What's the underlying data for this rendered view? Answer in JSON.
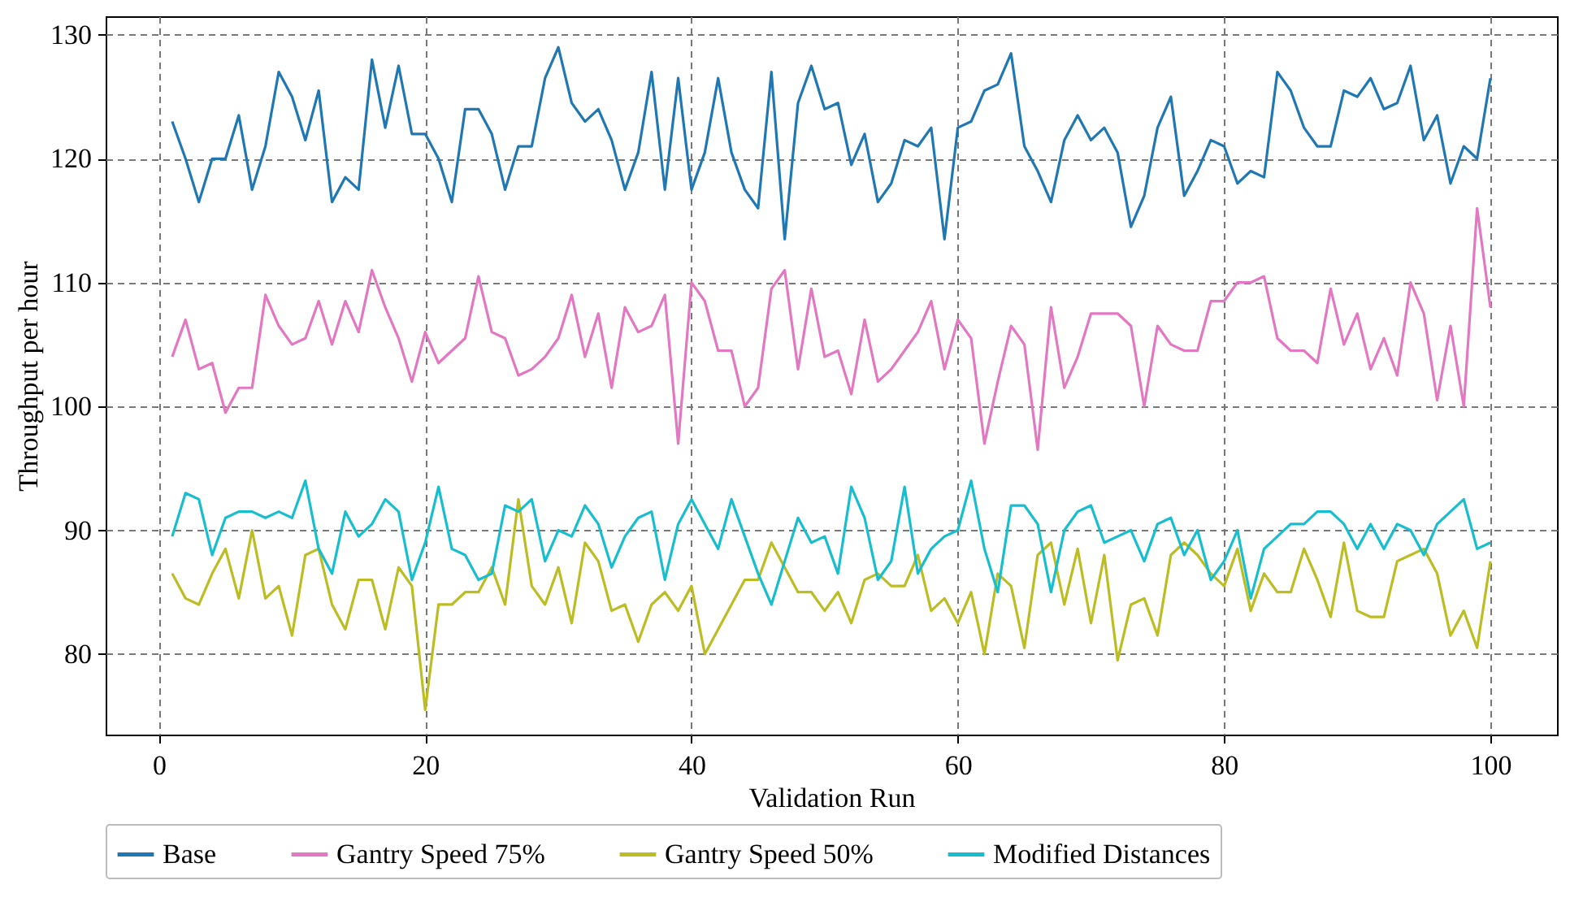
{
  "chart_data": {
    "type": "line",
    "xlabel": "Validation Run",
    "ylabel": "Throughput per hour",
    "xlim": [
      -4,
      105
    ],
    "ylim": [
      73.5,
      131.5
    ],
    "xticks": [
      0,
      20,
      40,
      60,
      80,
      100
    ],
    "yticks": [
      80,
      90,
      100,
      110,
      120,
      130
    ],
    "grid": true,
    "legend": "bottom",
    "line_style": "solid",
    "x": [
      1,
      2,
      3,
      4,
      5,
      6,
      7,
      8,
      9,
      10,
      11,
      12,
      13,
      14,
      15,
      16,
      17,
      18,
      19,
      20,
      21,
      22,
      23,
      24,
      25,
      26,
      27,
      28,
      29,
      30,
      31,
      32,
      33,
      34,
      35,
      36,
      37,
      38,
      39,
      40,
      41,
      42,
      43,
      44,
      45,
      46,
      47,
      48,
      49,
      50,
      51,
      52,
      53,
      54,
      55,
      56,
      57,
      58,
      59,
      60,
      61,
      62,
      63,
      64,
      65,
      66,
      67,
      68,
      69,
      70,
      71,
      72,
      73,
      74,
      75,
      76,
      77,
      78,
      79,
      80,
      81,
      82,
      83,
      84,
      85,
      86,
      87,
      88,
      89,
      90,
      91,
      92,
      93,
      94,
      95,
      96,
      97,
      98,
      99,
      100
    ],
    "series": [
      {
        "name": "Base",
        "color": "#1f77b4",
        "values": [
          123,
          120,
          116.5,
          120,
          120,
          123.5,
          117.5,
          121,
          127,
          125,
          121.5,
          125.5,
          116.5,
          118.5,
          117.5,
          128,
          122.5,
          127.5,
          122,
          122,
          120,
          116.5,
          124,
          124,
          122,
          117.5,
          121,
          121,
          126.5,
          129,
          124.5,
          123,
          124,
          121.5,
          117.5,
          120.5,
          127,
          117.5,
          126.5,
          117.5,
          120.5,
          126.5,
          120.5,
          117.5,
          116,
          127,
          113.5,
          124.5,
          127.5,
          124,
          124.5,
          119.5,
          122,
          116.5,
          118,
          121.5,
          121,
          122.5,
          113.5,
          122.5,
          123,
          125.5,
          126,
          128.5,
          121,
          119,
          116.5,
          121.5,
          123.5,
          121.5,
          122.5,
          120.5,
          114.5,
          117,
          122.5,
          125,
          117,
          119,
          121.5,
          121,
          118,
          119,
          118.5,
          127,
          125.5,
          122.5,
          121,
          121,
          125.5,
          125,
          126.5,
          124,
          124.5,
          127.5,
          121.5,
          123.5,
          118,
          121,
          120,
          126.5
        ]
      },
      {
        "name": "Gantry Speed 75%",
        "color": "#e377c2",
        "values": [
          104,
          107,
          103,
          103.5,
          99.5,
          101.5,
          101.5,
          109,
          106.5,
          105,
          105.5,
          108.5,
          105,
          108.5,
          106,
          111,
          108,
          105.5,
          102,
          106,
          103.5,
          104.5,
          105.5,
          110.5,
          106,
          105.5,
          102.5,
          103,
          104,
          105.5,
          109,
          104,
          107.5,
          101.5,
          108,
          106,
          106.5,
          109,
          97,
          110,
          108.5,
          104.5,
          104.5,
          100,
          101.5,
          109.5,
          111,
          103,
          109.5,
          104,
          104.5,
          101,
          107,
          102,
          103,
          104.5,
          106,
          108.5,
          103,
          107,
          105.5,
          97,
          102,
          106.5,
          105,
          96.5,
          108,
          101.5,
          104,
          107.5,
          107.5,
          107.5,
          106.5,
          100,
          106.5,
          105,
          104.5,
          104.5,
          108.5,
          108.5,
          110,
          110,
          110.5,
          105.5,
          104.5,
          104.5,
          103.5,
          109.5,
          105,
          107.5,
          103,
          105.5,
          102.5,
          110,
          107.5,
          100.5,
          106.5,
          100,
          116,
          108
        ]
      },
      {
        "name": "Gantry Speed 50%",
        "color": "#bcbd22",
        "values": [
          86.5,
          84.5,
          84,
          86.5,
          88.5,
          84.5,
          90,
          84.5,
          85.5,
          81.5,
          88,
          88.5,
          84,
          82,
          86,
          86,
          82,
          87,
          85.5,
          75.5,
          84,
          84,
          85,
          85,
          87,
          84,
          92.5,
          85.5,
          84,
          87,
          82.5,
          89,
          87.5,
          83.5,
          84,
          81,
          84,
          85,
          83.5,
          85.5,
          80,
          82,
          84,
          86,
          86,
          89,
          87,
          85,
          85,
          83.5,
          85,
          82.5,
          86,
          86.5,
          85.5,
          85.5,
          88,
          83.5,
          84.5,
          82.5,
          85,
          80,
          86.5,
          85.5,
          80.5,
          88,
          89,
          84,
          88.5,
          82.5,
          88,
          79.5,
          84,
          84.5,
          81.5,
          88,
          89,
          88,
          86.5,
          85.5,
          88.5,
          83.5,
          86.5,
          85,
          85,
          88.5,
          86,
          83,
          89,
          83.5,
          83,
          83,
          87.5,
          88,
          88.5,
          86.5,
          81.5,
          83.5,
          80.5,
          87.5
        ]
      },
      {
        "name": "Modified Distances",
        "color": "#17becf",
        "values": [
          89.5,
          93,
          92.5,
          88,
          91,
          91.5,
          91.5,
          91,
          91.5,
          91,
          94,
          88.5,
          86.5,
          91.5,
          89.5,
          90.5,
          92.5,
          91.5,
          86,
          89,
          93.5,
          88.5,
          88,
          86,
          86.5,
          92,
          91.5,
          92.5,
          87.5,
          90,
          89.5,
          92,
          90.5,
          87,
          89.5,
          91,
          91.5,
          86,
          90.5,
          92.5,
          90.5,
          88.5,
          92.5,
          89.5,
          86.5,
          84,
          87.5,
          91,
          89,
          89.5,
          86.5,
          93.5,
          91,
          86,
          87.5,
          93.5,
          86.5,
          88.5,
          89.5,
          90,
          94,
          88.5,
          85,
          92,
          92,
          90.5,
          85,
          90,
          91.5,
          92,
          89,
          89.5,
          90,
          87.5,
          90.5,
          91,
          88,
          90,
          86,
          87.5,
          90,
          84.5,
          88.5,
          89.5,
          90.5,
          90.5,
          91.5,
          91.5,
          90.5,
          88.5,
          90.5,
          88.5,
          90.5,
          90,
          88,
          90.5,
          91.5,
          92.5,
          88.5,
          89
        ]
      }
    ]
  }
}
